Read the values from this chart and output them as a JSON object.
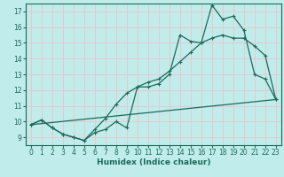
{
  "xlabel": "Humidex (Indice chaleur)",
  "bg_color": "#c0ecec",
  "grid_color": "#e8c8c8",
  "line_color": "#1a6b5a",
  "xlim": [
    -0.5,
    23.5
  ],
  "ylim": [
    8.5,
    17.5
  ],
  "xticks": [
    0,
    1,
    2,
    3,
    4,
    5,
    6,
    7,
    8,
    9,
    10,
    11,
    12,
    13,
    14,
    15,
    16,
    17,
    18,
    19,
    20,
    21,
    22,
    23
  ],
  "yticks": [
    9,
    10,
    11,
    12,
    13,
    14,
    15,
    16,
    17
  ],
  "curve1_x": [
    0,
    1,
    2,
    3,
    4,
    5,
    6,
    7,
    8,
    9,
    10,
    11,
    12,
    13,
    14,
    15,
    16,
    17,
    18,
    19,
    20,
    21,
    22,
    23
  ],
  "curve1_y": [
    9.8,
    10.1,
    9.6,
    9.2,
    9.0,
    8.8,
    9.3,
    9.5,
    10.0,
    9.6,
    12.2,
    12.2,
    12.4,
    13.0,
    15.5,
    15.1,
    15.0,
    17.4,
    16.5,
    16.7,
    15.8,
    13.0,
    12.7,
    11.4
  ],
  "curve2_x": [
    0,
    1,
    2,
    3,
    4,
    5,
    6,
    7,
    8,
    9,
    10,
    11,
    12,
    13,
    14,
    15,
    16,
    17,
    18,
    19,
    20,
    21,
    22,
    23
  ],
  "curve2_y": [
    9.8,
    10.1,
    9.6,
    9.2,
    9.0,
    8.8,
    9.5,
    10.2,
    11.1,
    11.8,
    12.2,
    12.5,
    12.7,
    13.2,
    13.8,
    14.4,
    15.0,
    15.3,
    15.5,
    15.3,
    15.3,
    14.8,
    14.2,
    11.4
  ],
  "curve3_x": [
    0,
    23
  ],
  "curve3_y": [
    9.8,
    11.4
  ]
}
